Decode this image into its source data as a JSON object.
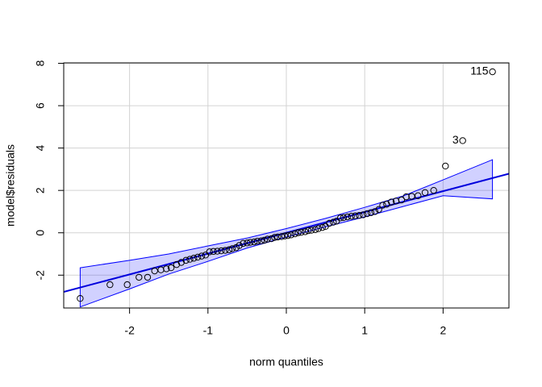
{
  "chart_data": {
    "type": "scatter",
    "x_label": "norm quantiles",
    "y_label": "model$residuals",
    "xlim": [
      -2.84,
      2.84
    ],
    "ylim": [
      -3.55,
      8.02
    ],
    "xticks": [
      -2,
      -1,
      0,
      1,
      2
    ],
    "yticks": [
      -2,
      0,
      2,
      4,
      6,
      8
    ],
    "grid": true,
    "point_color": "#000000",
    "line_color": "#0000dd",
    "band_color": "#0000ff",
    "x": [
      -2.63,
      -2.25,
      -2.03,
      -1.88,
      -1.77,
      -1.68,
      -1.6,
      -1.53,
      -1.47,
      -1.4,
      -1.34,
      -1.28,
      -1.23,
      -1.18,
      -1.13,
      -1.08,
      -1.03,
      -0.98,
      -0.93,
      -0.88,
      -0.83,
      -0.78,
      -0.73,
      -0.69,
      -0.64,
      -0.6,
      -0.55,
      -0.5,
      -0.46,
      -0.41,
      -0.37,
      -0.32,
      -0.28,
      -0.24,
      -0.19,
      -0.15,
      -0.11,
      -0.06,
      -0.02,
      0.02,
      0.06,
      0.11,
      0.15,
      0.19,
      0.24,
      0.28,
      0.32,
      0.37,
      0.41,
      0.46,
      0.5,
      0.55,
      0.6,
      0.64,
      0.69,
      0.73,
      0.78,
      0.83,
      0.88,
      0.93,
      0.98,
      1.03,
      1.08,
      1.13,
      1.18,
      1.23,
      1.28,
      1.34,
      1.4,
      1.47,
      1.53,
      1.6,
      1.68,
      1.77,
      1.88,
      2.03,
      2.25,
      2.63
    ],
    "y": [
      -3.1,
      -2.45,
      -2.45,
      -2.1,
      -2.1,
      -1.8,
      -1.75,
      -1.7,
      -1.65,
      -1.5,
      -1.4,
      -1.3,
      -1.25,
      -1.2,
      -1.15,
      -1.1,
      -1.05,
      -0.9,
      -0.88,
      -0.87,
      -0.85,
      -0.83,
      -0.8,
      -0.75,
      -0.7,
      -0.6,
      -0.5,
      -0.48,
      -0.45,
      -0.43,
      -0.4,
      -0.38,
      -0.35,
      -0.3,
      -0.28,
      -0.22,
      -0.2,
      -0.18,
      -0.15,
      -0.13,
      -0.1,
      -0.05,
      0.0,
      0.02,
      0.05,
      0.1,
      0.12,
      0.15,
      0.2,
      0.25,
      0.3,
      0.45,
      0.5,
      0.55,
      0.7,
      0.72,
      0.75,
      0.78,
      0.8,
      0.82,
      0.85,
      0.9,
      0.95,
      1.0,
      1.1,
      1.3,
      1.35,
      1.45,
      1.5,
      1.55,
      1.7,
      1.72,
      1.75,
      1.9,
      2.0,
      3.15,
      4.35,
      7.6
    ],
    "fit_line": {
      "x": [
        -2.84,
        2.84
      ],
      "y": [
        -2.79,
        2.79
      ]
    },
    "band": {
      "x": [
        -2.63,
        -2,
        -1.5,
        -1,
        -0.5,
        0,
        0.5,
        1,
        1.5,
        2,
        2.63
      ],
      "upper": [
        -1.65,
        -1.3,
        -1.0,
        -0.62,
        -0.25,
        0.2,
        0.68,
        1.2,
        1.75,
        2.5,
        3.45
      ],
      "lower": [
        -3.5,
        -2.65,
        -1.95,
        -1.35,
        -0.72,
        -0.2,
        0.28,
        0.75,
        1.25,
        1.75,
        1.6
      ]
    },
    "annotations": [
      {
        "text": "3",
        "x": 2.25,
        "y": 4.35
      },
      {
        "text": "115",
        "x": 2.63,
        "y": 7.6
      }
    ]
  }
}
